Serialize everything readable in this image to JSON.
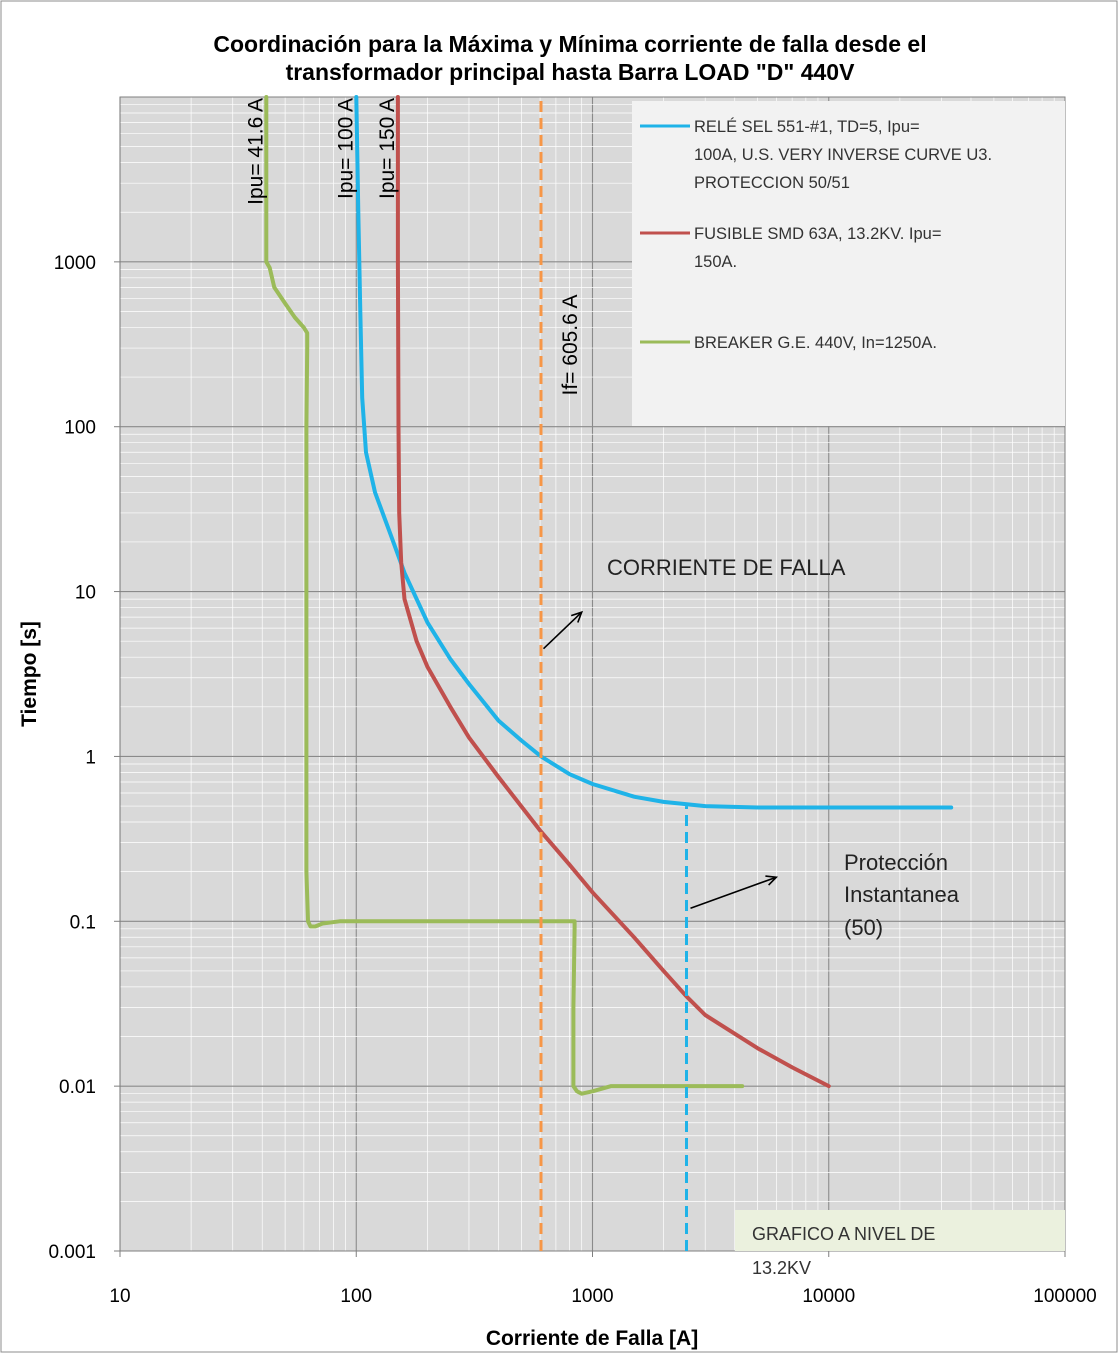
{
  "chart_data": {
    "type": "line",
    "title_lines": [
      "Coordinación para la Máxima y Mínima corriente de falla desde el",
      "transformador principal hasta Barra LOAD \"D\" 440V"
    ],
    "xlabel": "Corriente de Falla [A]",
    "ylabel": "Tiempo [s]",
    "x_scale": "log",
    "y_scale": "log",
    "xlim": [
      10,
      100000
    ],
    "ylim": [
      0.001,
      10000
    ],
    "x_ticks": [
      10,
      100,
      1000,
      10000,
      100000
    ],
    "x_tick_labels": [
      "10",
      "100",
      "1000",
      "10000",
      "100000"
    ],
    "y_ticks": [
      0.001,
      0.01,
      0.1,
      1,
      10,
      100,
      1000
    ],
    "y_tick_labels": [
      "0.001",
      "0.01",
      "0.1",
      "1",
      "10",
      "100",
      "1000"
    ],
    "grid": true,
    "series": [
      {
        "name": "RELÉ SEL 551-#1, TD=5, Ipu= 100A, U.S. VERY INVERSE CURVE U3. PROTECCION 50/51",
        "legend_lines": [
          "RELÉ SEL 551-#1, TD=5, Ipu=",
          "100A, U.S. VERY INVERSE CURVE U3.",
          "PROTECCION 50/51"
        ],
        "color": "#1fb3e8",
        "x": [
          100,
          102,
          104,
          106,
          110,
          120,
          140,
          160,
          200,
          250,
          300,
          400,
          500,
          605.6,
          800,
          1000,
          1500,
          2000,
          3000,
          5000,
          10000,
          33000
        ],
        "y": [
          10000,
          2000,
          500,
          150,
          70,
          40,
          22,
          13,
          6.5,
          3.9,
          2.75,
          1.65,
          1.25,
          1.0,
          0.78,
          0.68,
          0.57,
          0.53,
          0.5,
          0.49,
          0.49,
          0.49
        ]
      },
      {
        "name": "FUSIBLE SMD 63A, 13.2KV. Ipu= 150A.",
        "legend_lines": [
          "FUSIBLE SMD 63A, 13.2KV. Ipu=",
          "150A."
        ],
        "color": "#c0504d",
        "x": [
          150,
          150,
          151,
          152,
          155,
          160,
          180,
          200,
          250,
          300,
          400,
          605.6,
          800,
          1000,
          1500,
          2000,
          2500,
          3000,
          5000,
          7000,
          10000
        ],
        "y": [
          10000,
          1000,
          100,
          30,
          15,
          9,
          5,
          3.5,
          2.0,
          1.3,
          0.75,
          0.35,
          0.22,
          0.15,
          0.08,
          0.05,
          0.035,
          0.027,
          0.017,
          0.013,
          0.01
        ]
      },
      {
        "name": "BREAKER G.E. 440V, In=1250A.",
        "legend_lines": [
          "BREAKER G.E. 440V, In=1250A."
        ],
        "color": "#9bbb59",
        "x": [
          41.6,
          41.6,
          43,
          45,
          50,
          55,
          60,
          62,
          62,
          61.5,
          61.5,
          62.5,
          64,
          67,
          72,
          85,
          200,
          500,
          840,
          840,
          830,
          830,
          860,
          900,
          1000,
          1200,
          2000,
          4300
        ],
        "y": [
          10000,
          1000,
          920,
          700,
          560,
          460,
          400,
          370,
          300,
          100,
          0.2,
          0.1,
          0.093,
          0.093,
          0.097,
          0.1,
          0.1,
          0.1,
          0.1,
          0.09,
          0.03,
          0.01,
          0.0093,
          0.009,
          0.0093,
          0.01,
          0.01,
          0.01
        ]
      },
      {
        "name": "If= 605.6 A",
        "color": "#f79646",
        "dashed": true,
        "x": [
          605.6,
          605.6
        ],
        "y": [
          0.001,
          10000
        ]
      },
      {
        "name": "Protección Instantanea",
        "color": "#1fb3e8",
        "dashed": true,
        "x": [
          2500,
          2500
        ],
        "y": [
          0.001,
          0.5
        ]
      }
    ],
    "vertical_labels": [
      {
        "text": "Ipu= 41.6 A",
        "x": 41.6
      },
      {
        "text": "Ipu= 100 A",
        "x": 100
      },
      {
        "text": "Ipu= 150 A",
        "x": 150
      },
      {
        "text": "If= 605.6 A",
        "x": 605.6
      }
    ],
    "annotations": [
      {
        "lines": [
          "CORRIENTE DE FALLA"
        ],
        "text_at": [
          1100,
          12
        ],
        "arrow_from": [
          620,
          4.5
        ],
        "arrow_to": [
          900,
          7.5
        ]
      },
      {
        "lines": [
          "Protección",
          "Instantanea",
          "(50)"
        ],
        "text_at": [
          6000,
          0.15
        ],
        "arrow_from": [
          2600,
          0.12
        ],
        "arrow_to": [
          6000,
          0.185
        ]
      }
    ],
    "note": "GRAFICO A NIVEL DE 13.2KV",
    "legend_placement": "top-right"
  }
}
